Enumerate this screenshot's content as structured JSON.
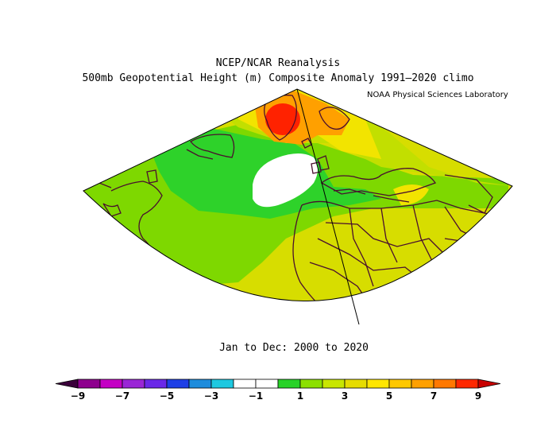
{
  "header": {
    "line1": "NCEP/NCAR Reanalysis",
    "line2": "500mb Geopotential Height (m) Composite Anomaly 1991–2020 climo",
    "credit": "NOAA Physical Sciences Laboratory"
  },
  "footer": {
    "period": "Jan to Dec: 2000 to 2020"
  },
  "colorbar": {
    "tick_labels": [
      "−9",
      "−7",
      "−5",
      "−3",
      "−1",
      "1",
      "3",
      "5",
      "7",
      "9"
    ],
    "colors": [
      "#3a003a",
      "#8e008e",
      "#c400c4",
      "#9a26d6",
      "#6a28e8",
      "#1e3fe6",
      "#1e8cdc",
      "#1ec8e0",
      "#ffffff",
      "#ffffff",
      "#28d228",
      "#8ce000",
      "#c8e600",
      "#e6dc00",
      "#ffe600",
      "#ffc800",
      "#ffa000",
      "#ff7800",
      "#ff2800",
      "#c80000"
    ]
  },
  "map": {
    "fill_colors": {
      "background": "#d7dd00",
      "green": "#7ed800",
      "bright_green": "#2ed22a",
      "yellow_green": "#c2df00",
      "yellow": "#f2e400",
      "orange": "#ffa000",
      "red": "#ff2200",
      "white": "#ffffff",
      "coast": "#4a0f2e"
    }
  }
}
